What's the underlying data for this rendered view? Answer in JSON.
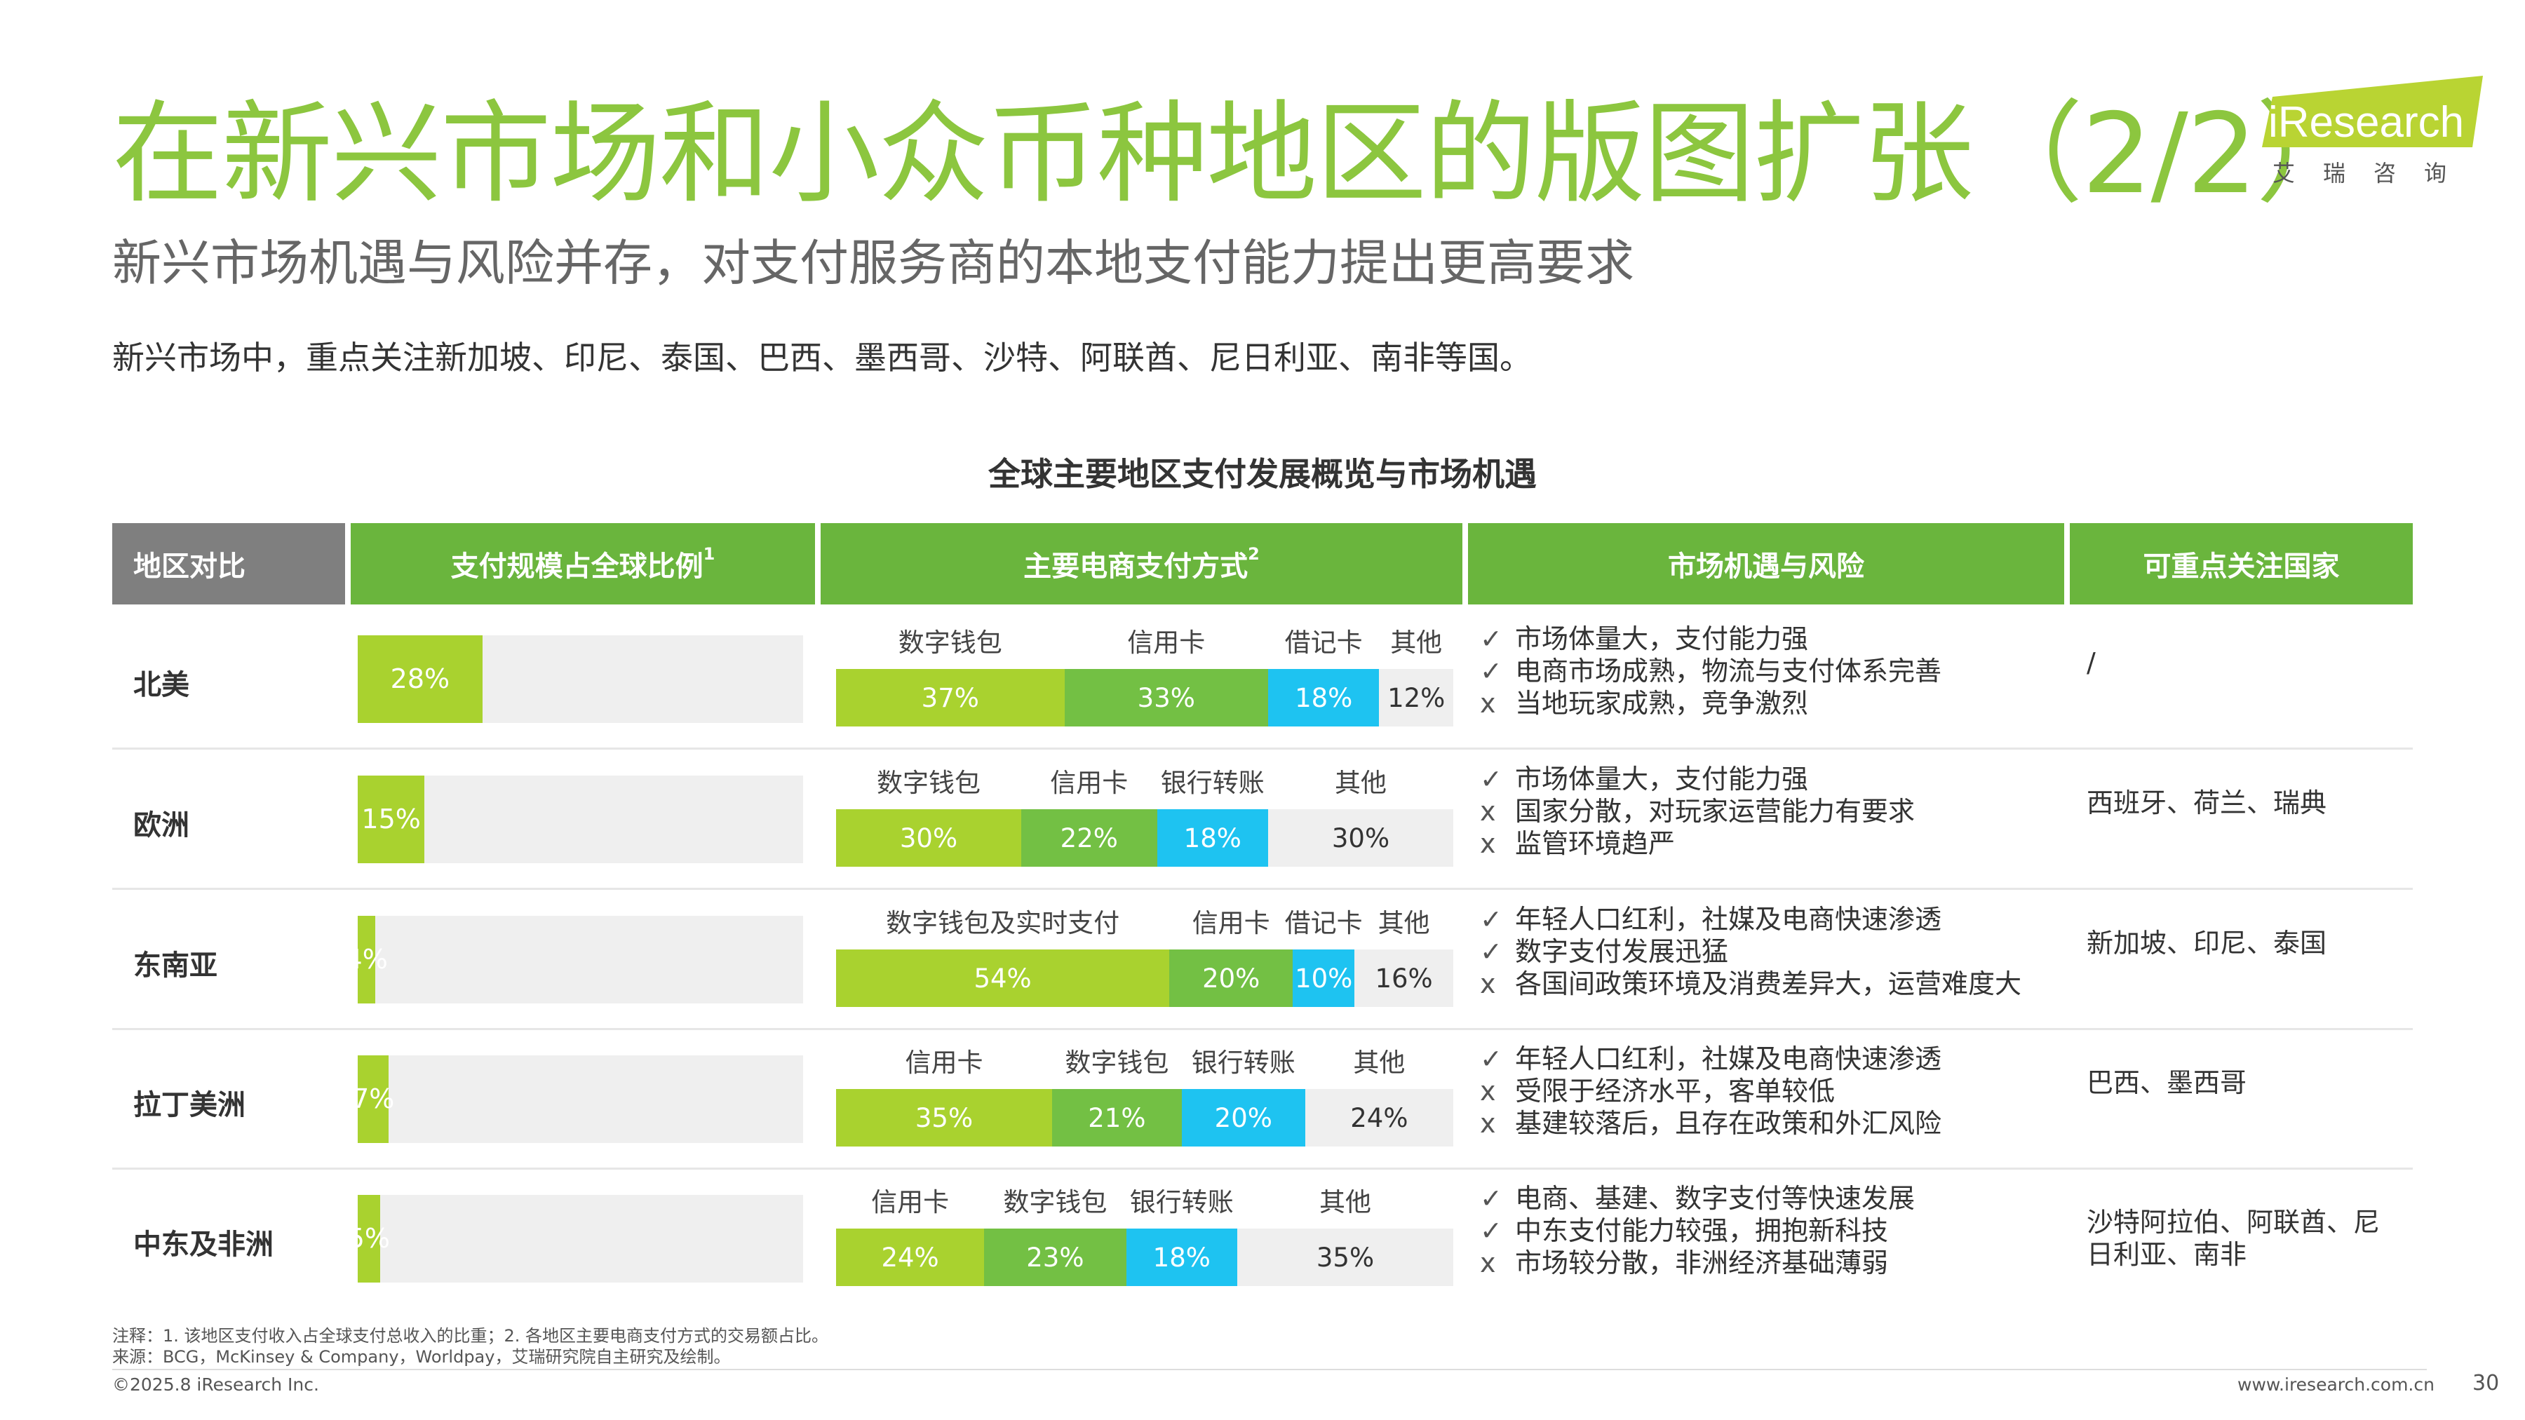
{
  "title": "在新兴市场和小众币种地区的版图扩张（2/2）",
  "subtitle": "新兴市场机遇与风险并存，对支付服务商的本地支付能力提出更高要求",
  "intro": "新兴市场中，重点关注新加坡、印尼、泰国、巴西、墨西哥、沙特、阿联酋、尼日利亚、南非等国。",
  "logo": {
    "text": "iResearch",
    "sub": "艾瑞咨询"
  },
  "table_title": "全球主要地区支付发展概览与市场机遇",
  "headers": [
    "地区对比",
    "支付规模占全球比例",
    "主要电商支付方式",
    "市场机遇与风险",
    "可重点关注国家"
  ],
  "header_sups": [
    "1",
    "2"
  ],
  "rows": [
    {
      "region": "北美",
      "share": 28,
      "share_label": "28%",
      "payments": [
        {
          "name": "数字钱包",
          "pct": 37,
          "label": "37%"
        },
        {
          "name": "信用卡",
          "pct": 33,
          "label": "33%"
        },
        {
          "name": "借记卡",
          "pct": 18,
          "label": "18%"
        },
        {
          "name": "其他",
          "pct": 12,
          "label": "12%"
        }
      ],
      "bullets": [
        {
          "mark": "✓",
          "text": "市场体量大，支付能力强"
        },
        {
          "mark": "✓",
          "text": "电商市场成熟，物流与支付体系完善"
        },
        {
          "mark": "x",
          "text": "当地玩家成熟，竞争激烈"
        }
      ],
      "countries": "/"
    },
    {
      "region": "欧洲",
      "share": 15,
      "share_label": "15%",
      "payments": [
        {
          "name": "数字钱包",
          "pct": 30,
          "label": "30%"
        },
        {
          "name": "信用卡",
          "pct": 22,
          "label": "22%"
        },
        {
          "name": "银行转账",
          "pct": 18,
          "label": "18%"
        },
        {
          "name": "其他",
          "pct": 30,
          "label": "30%"
        }
      ],
      "bullets": [
        {
          "mark": "✓",
          "text": "市场体量大，支付能力强"
        },
        {
          "mark": "x",
          "text": "国家分散，对玩家运营能力有要求"
        },
        {
          "mark": "x",
          "text": "监管环境趋严"
        }
      ],
      "countries": "西班牙、荷兰、瑞典"
    },
    {
      "region": "东南亚",
      "share": 4,
      "share_label": "4%",
      "payments": [
        {
          "name": "数字钱包及实时支付",
          "pct": 54,
          "label": "54%"
        },
        {
          "name": "信用卡",
          "pct": 20,
          "label": "20%"
        },
        {
          "name": "借记卡",
          "pct": 10,
          "label": "10%"
        },
        {
          "name": "其他",
          "pct": 16,
          "label": "16%"
        }
      ],
      "bullets": [
        {
          "mark": "✓",
          "text": "年轻人口红利，社媒及电商快速渗透"
        },
        {
          "mark": "✓",
          "text": "数字支付发展迅猛"
        },
        {
          "mark": "x",
          "text": "各国间政策环境及消费差异大，运营难度大"
        }
      ],
      "countries": "新加坡、印尼、泰国"
    },
    {
      "region": "拉丁美洲",
      "share": 7,
      "share_label": "7%",
      "payments": [
        {
          "name": "信用卡",
          "pct": 35,
          "label": "35%"
        },
        {
          "name": "数字钱包",
          "pct": 21,
          "label": "21%"
        },
        {
          "name": "银行转账",
          "pct": 20,
          "label": "20%"
        },
        {
          "name": "其他",
          "pct": 24,
          "label": "24%"
        }
      ],
      "bullets": [
        {
          "mark": "✓",
          "text": "年轻人口红利，社媒及电商快速渗透"
        },
        {
          "mark": "x",
          "text": "受限于经济水平，客单较低"
        },
        {
          "mark": "x",
          "text": "基建较落后，且存在政策和外汇风险"
        }
      ],
      "countries": "巴西、墨西哥"
    },
    {
      "region": "中东及非洲",
      "share": 5,
      "share_label": "5%",
      "payments": [
        {
          "name": "信用卡",
          "pct": 24,
          "label": "24%"
        },
        {
          "name": "数字钱包",
          "pct": 23,
          "label": "23%"
        },
        {
          "name": "银行转账",
          "pct": 18,
          "label": "18%"
        },
        {
          "name": "其他",
          "pct": 35,
          "label": "35%"
        }
      ],
      "bullets": [
        {
          "mark": "✓",
          "text": "电商、基建、数字支付等快速发展"
        },
        {
          "mark": "✓",
          "text": "中东支付能力较强，拥抱新科技"
        },
        {
          "mark": "x",
          "text": "市场较分散，非洲经济基础薄弱"
        }
      ],
      "countries": "沙特阿拉伯、阿联酋、尼日利亚、南非"
    }
  ],
  "footnote": "注释：1. 该地区支付收入占全球支付总收入的比重；2. 各地区主要电商支付方式的交易额占比。",
  "source": "来源：BCG，McKinsey & Company，Worldpay，艾瑞研究院自主研究及绘制。",
  "copyright": "©2025.8 iResearch Inc.",
  "website": "www.iresearch.com.cn",
  "page_number": "30",
  "colors": {
    "title": "#8cc63f",
    "header_green": "#6ab53d",
    "header_gray": "#7f7f7f",
    "seg1": "#a9d22f",
    "seg2": "#73c044",
    "seg3": "#1ec3f1",
    "seg4": "#efefef"
  }
}
